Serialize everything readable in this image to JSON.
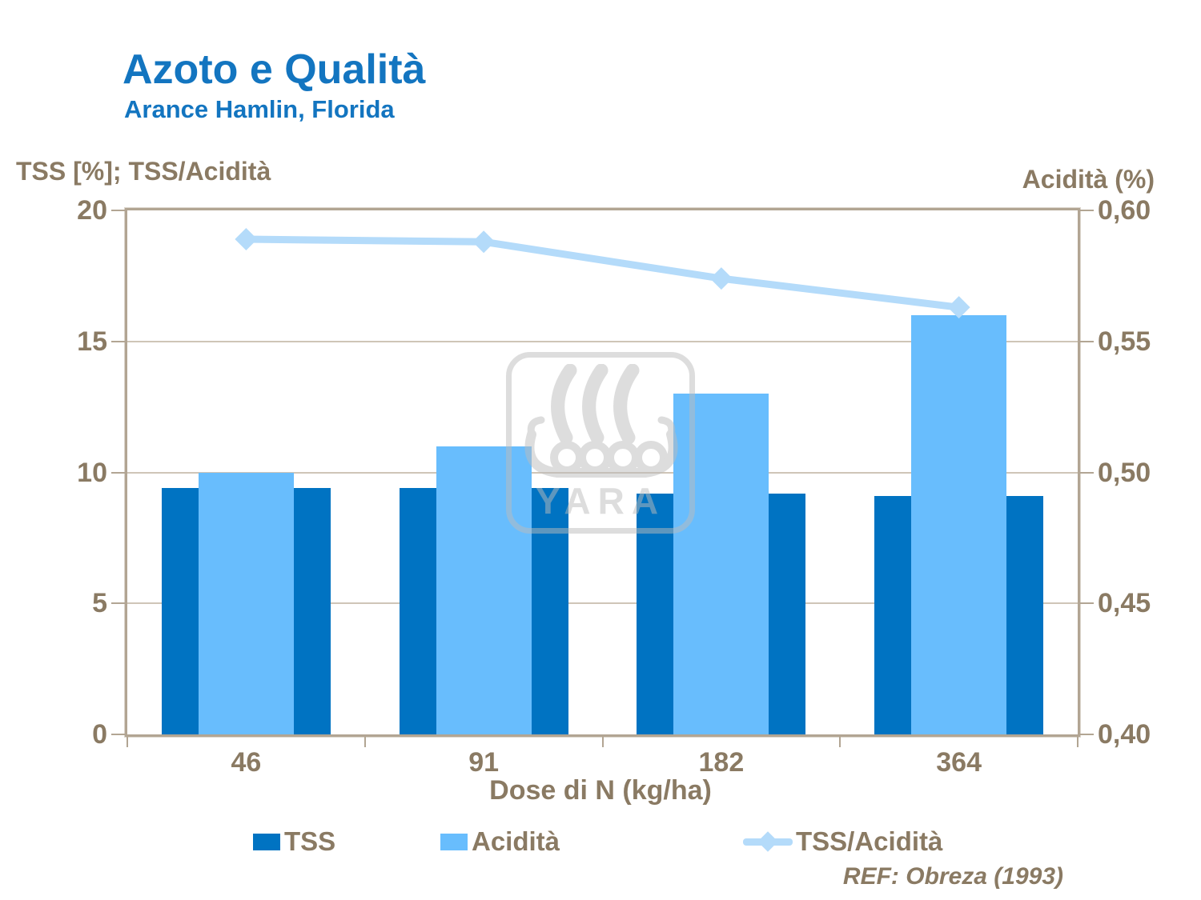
{
  "header": {
    "title": "Azoto e Qualità",
    "subtitle": "Arance Hamlin, Florida"
  },
  "watermark": {
    "text": "YARA"
  },
  "footer": {
    "ref": "REF: Obreza (1993)"
  },
  "colors": {
    "title_blue": "#1375C0",
    "axis_brown": "#8A7A63",
    "plot_border": "#B2A593",
    "gridline": "#CFC5B7",
    "bar_dark_blue": "#0073C2",
    "bar_light_blue": "#68BDFD",
    "line_pale_blue": "#B4DBFA"
  },
  "chart_data": {
    "type": "bar+line",
    "title": "Azoto e Qualità",
    "subtitle": "Arance Hamlin, Florida",
    "categories": [
      "46",
      "91",
      "182",
      "364"
    ],
    "xlabel": "Dose di N (kg/ha)",
    "grid": true,
    "legend_position": "bottom",
    "left_axis": {
      "label": "TSS [%]; TSS/Acidità",
      "min": 0,
      "max": 20,
      "tick_values": [
        0,
        5,
        10,
        15,
        20
      ],
      "tick_labels": [
        "0",
        "5",
        "10",
        "15",
        "20"
      ]
    },
    "right_axis": {
      "label": "Acidità (%)",
      "min": 0.4,
      "max": 0.6,
      "tick_values": [
        0.4,
        0.45,
        0.5,
        0.55,
        0.6
      ],
      "tick_labels": [
        "0,40",
        "0,45",
        "0,50",
        "0,55",
        "0,60"
      ]
    },
    "series": [
      {
        "name": "TSS",
        "kind": "bar",
        "axis": "left",
        "color": "#0073C2",
        "values": [
          9.4,
          9.4,
          9.2,
          9.1
        ]
      },
      {
        "name": "Acidità",
        "kind": "bar",
        "axis": "right",
        "color": "#68BDFD",
        "values": [
          0.5,
          0.51,
          0.53,
          0.56
        ]
      },
      {
        "name": "TSS/Acidità",
        "kind": "line",
        "axis": "left",
        "color": "#B4DBFA",
        "values": [
          18.9,
          18.8,
          17.4,
          16.3
        ]
      }
    ]
  }
}
